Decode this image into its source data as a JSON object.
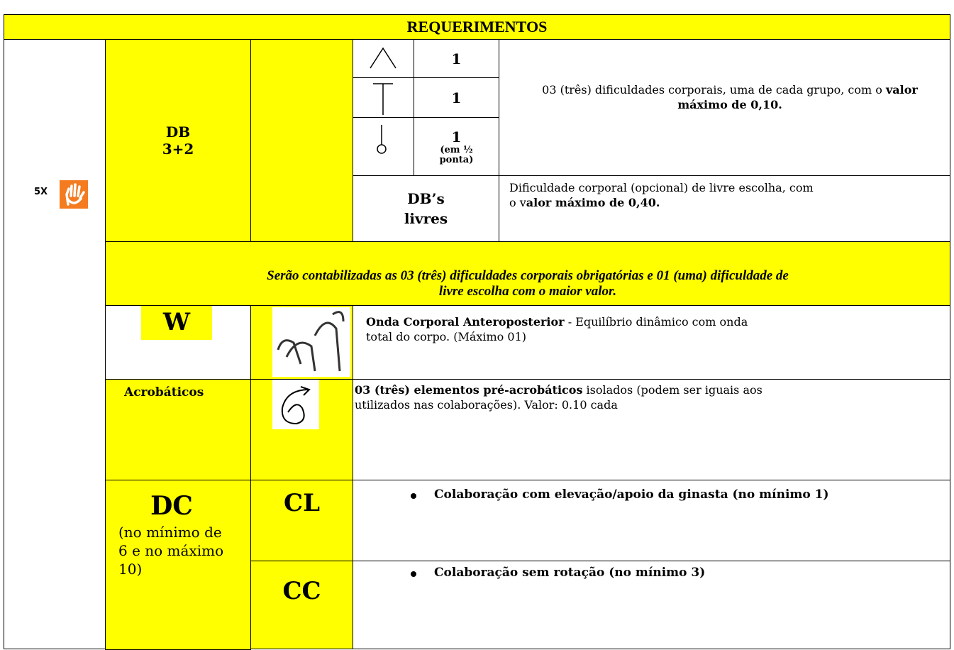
{
  "header": {
    "title": "REQUERIMENTOS"
  },
  "multiplier": "5X",
  "db": {
    "label": "DB",
    "count": "3+2",
    "groups": [
      {
        "value": 1
      },
      {
        "value": 1
      },
      {
        "value": 1,
        "note": "(em ½ ponta)"
      }
    ],
    "groups_text": [
      "03 (três) dificuldades corporais, uma de cada grupo, com o ",
      "valor máximo de 0,10."
    ],
    "free_label": "DB’s livres",
    "free_text": [
      "Dificuldade corporal (opcional) de livre escolha, com o v",
      "alor máximo de 0,40."
    ]
  },
  "note": "Serão contabilizadas as 03 (três) dificuldades corporais obrigatórias e 01 (uma) dificuldade de livre escolha com o maior valor.",
  "w": {
    "label": "W",
    "text": [
      "Onda Corporal Anteroposterior",
      " - Equilíbrio dinâmico com onda total do corpo.  (Máximo 01)"
    ]
  },
  "acro": {
    "label": "Acrobáticos",
    "text": [
      "03 (três) elementos pré-acrobáticos",
      " isolados (podem ser iguais aos utilizados nas colaborações). Valor: 0.10 cada"
    ]
  },
  "dc": {
    "label": "DC",
    "note": "(no mínimo de 6 e no máximo 10)",
    "cl": {
      "label": "CL",
      "text": "Colaboração com elevação/apoio da ginasta (no mínimo 1)"
    },
    "cc": {
      "label": "CC",
      "text": "Colaboração sem rotação (no mínimo 3)"
    }
  }
}
